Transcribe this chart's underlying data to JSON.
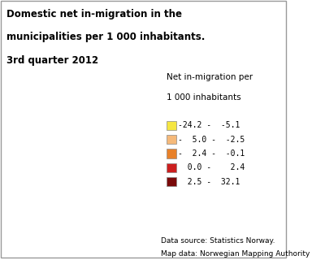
{
  "title_line1": "Domestic net in-migration in the",
  "title_line2": "municipalities per 1 000 inhabitants.",
  "title_line3": "3rd quarter 2012",
  "legend_title_line1": "Net in-migration per",
  "legend_title_line2": "1 000 inhabitants",
  "legend_entries": [
    {
      "label": "-24.2 -  -5.1",
      "color": "#F5E642"
    },
    {
      "label": "-  5.0 -  -2.5",
      "color": "#F5B97A"
    },
    {
      "label": "-  2.4 -  -0.1",
      "color": "#E8812A"
    },
    {
      "label": "  0.0 -    2.4",
      "color": "#CC1F1F"
    },
    {
      "label": "  2.5 -  32.1",
      "color": "#7A0A0A"
    }
  ],
  "datasource_line1": "Data source: Statistics Norway.",
  "datasource_line2": "Map data: Norwegian Mapping Authority",
  "background_color": "#ffffff",
  "border_color": "#cccccc",
  "figsize": [
    4.0,
    3.2
  ],
  "dpi": 100
}
